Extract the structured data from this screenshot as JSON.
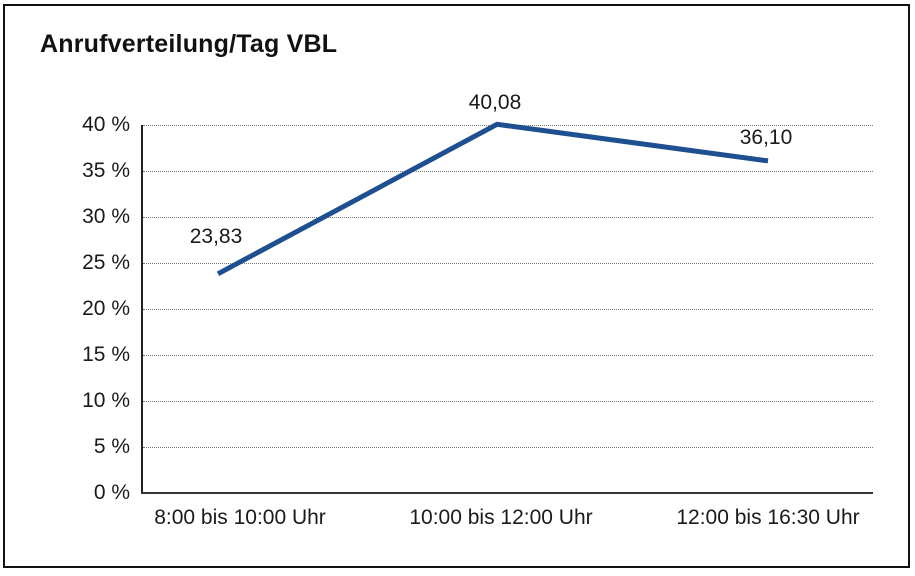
{
  "title": "Anrufverteilung/Tag VBL",
  "colors": {
    "line": "#1D4F91",
    "grid": "#777777",
    "axis": "#222222",
    "text": "#1a1a1a",
    "frame_border": "#111111",
    "background": "#ffffff"
  },
  "chart_data": {
    "type": "line",
    "title": "Anrufverteilung/Tag VBL",
    "categories": [
      "8:00 bis 10:00 Uhr",
      "10:00 bis 12:00 Uhr",
      "12:00 bis 16:30 Uhr"
    ],
    "values": [
      23.83,
      40.08,
      36.1
    ],
    "point_labels": [
      "23,83",
      "40,08",
      "36,10"
    ],
    "ytick_labels": [
      "40 %",
      "35 %",
      "30 %",
      "25 %",
      "20 %",
      "15 %",
      "10 %",
      "5 %",
      "0 %"
    ],
    "ytick_values": [
      40,
      35,
      30,
      25,
      20,
      15,
      10,
      5,
      0
    ],
    "ylim": [
      0,
      40
    ],
    "ytick_step": 5,
    "xlabel": "",
    "ylabel": "",
    "grid": "horizontal-dotted",
    "legend": "none",
    "line_color": "#1D4F91"
  }
}
